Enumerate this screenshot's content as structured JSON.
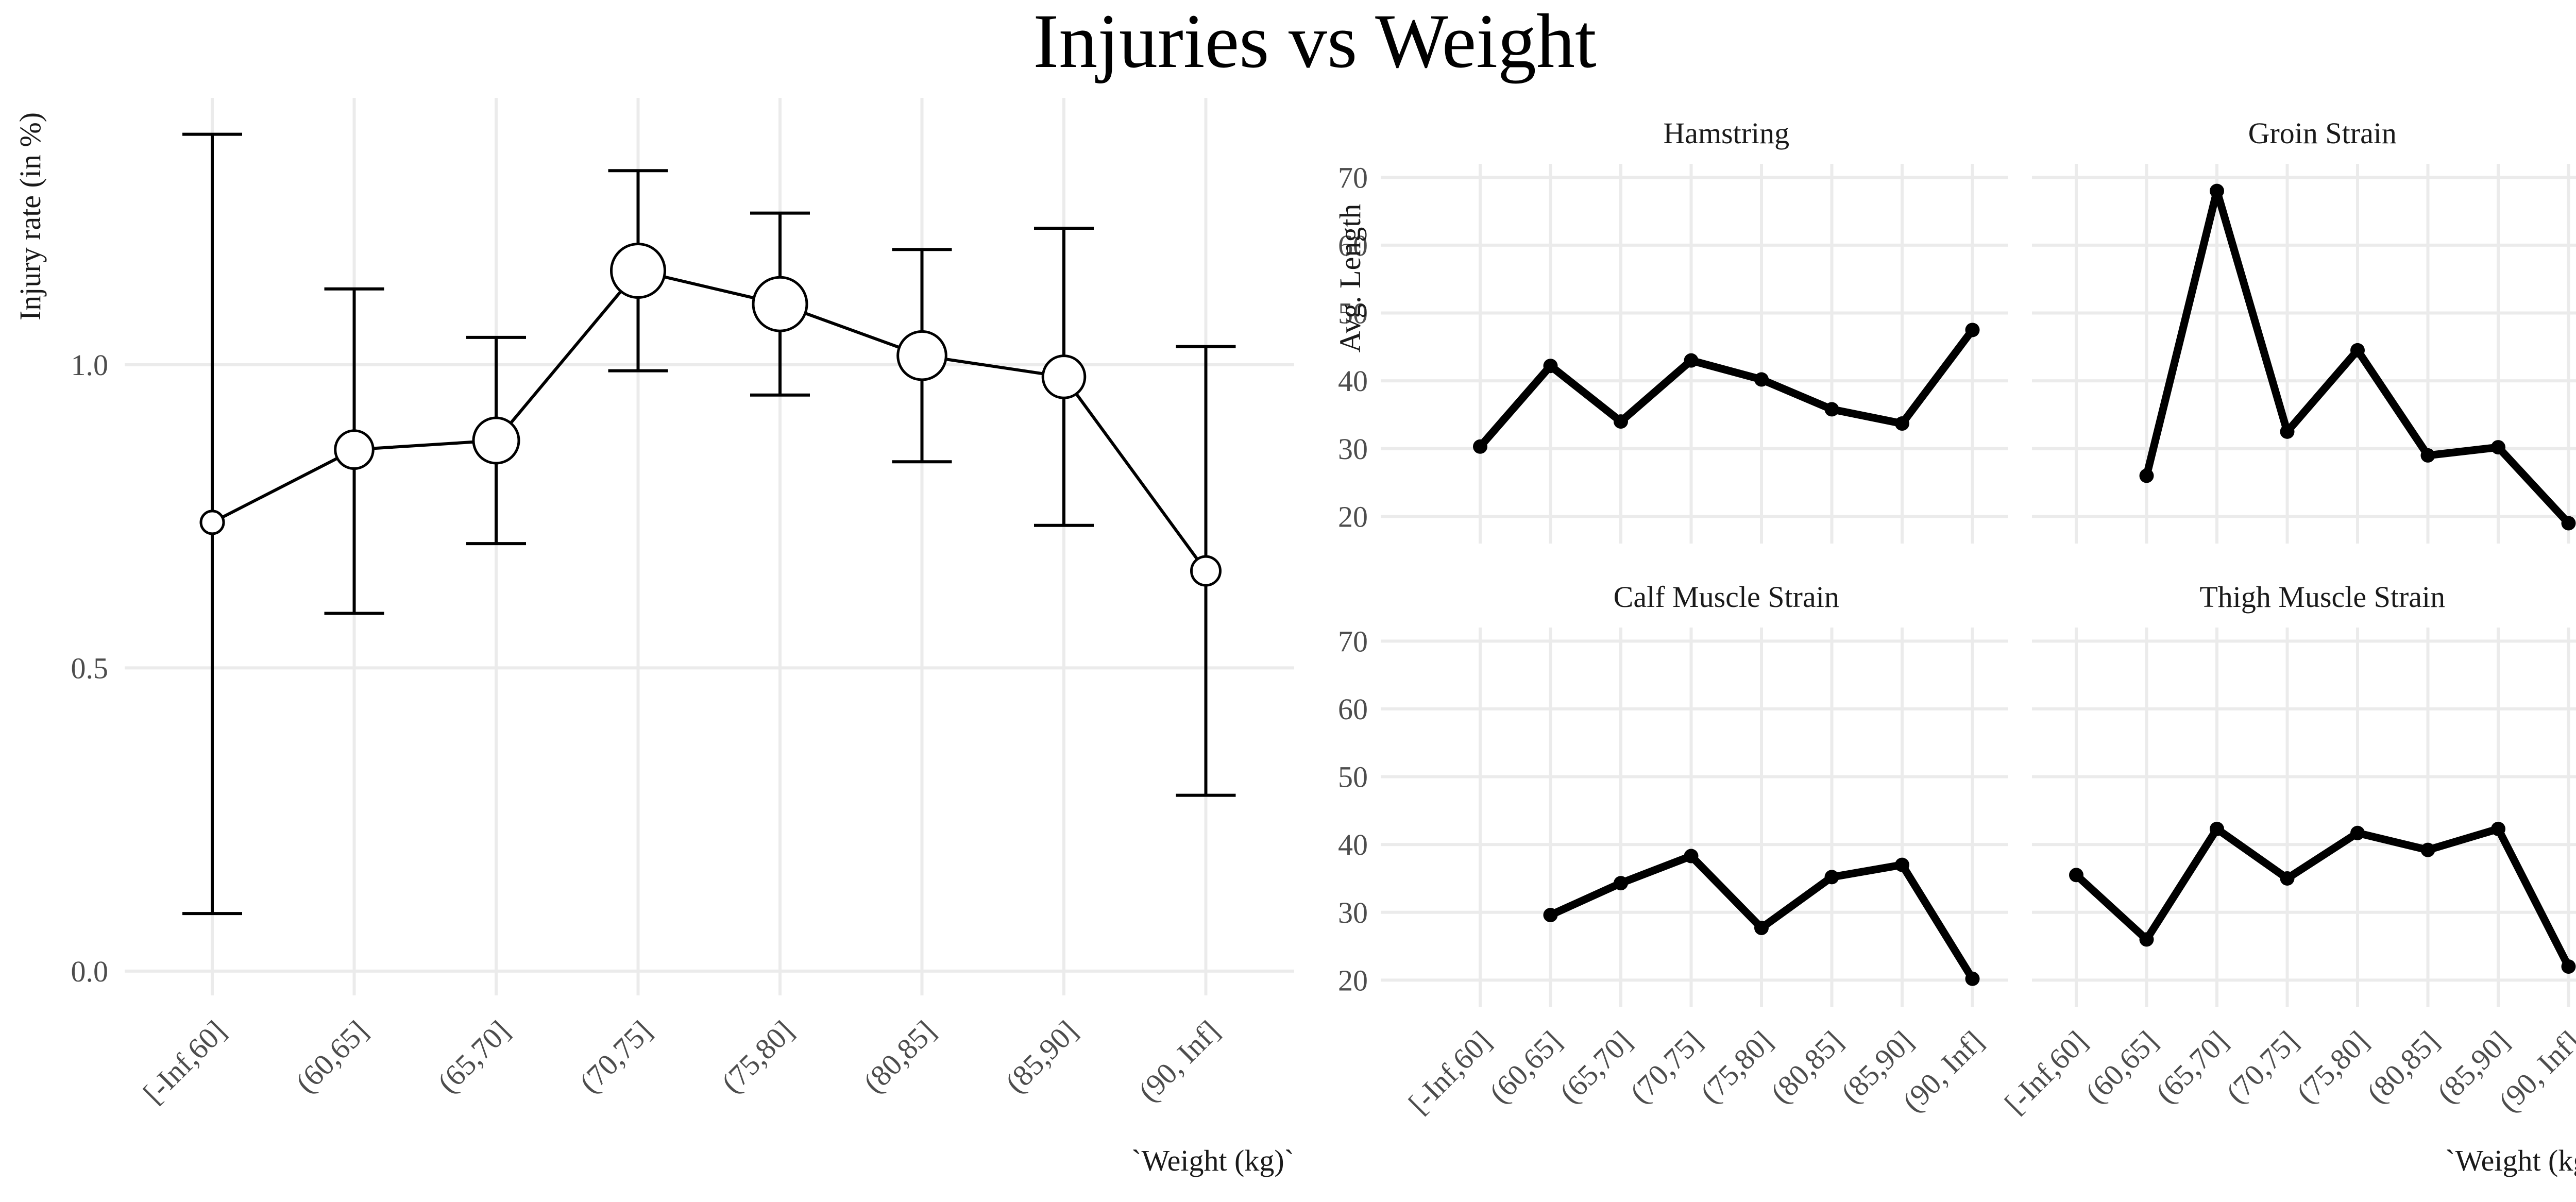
{
  "title": "Injuries vs Weight",
  "chart_data": [
    {
      "type": "line",
      "subtype": "point-range",
      "xlabel": "`Weight (kg)`",
      "ylabel": "Injury rate (in %)",
      "ylim": [
        -0.04,
        1.44
      ],
      "yticks": [
        0.0,
        0.5,
        1.0
      ],
      "ytick_labels": [
        "0.0",
        "0.5",
        "1.0"
      ],
      "grid": true,
      "categories": [
        "[-Inf,60]",
        "(60,65]",
        "(65,70]",
        "(70,75]",
        "(75,80]",
        "(80,85]",
        "(85,90]",
        "(90, Inf]"
      ],
      "values": [
        0.74,
        0.86,
        0.875,
        1.155,
        1.1,
        1.015,
        0.98,
        0.66
      ],
      "lower": [
        0.095,
        0.59,
        0.705,
        0.99,
        0.95,
        0.84,
        0.735,
        0.29
      ],
      "upper": [
        1.38,
        1.125,
        1.045,
        1.32,
        1.25,
        1.19,
        1.225,
        1.03
      ],
      "point_size_relative": [
        0.25,
        0.62,
        0.8,
        1.0,
        1.0,
        0.87,
        0.72,
        0.4
      ]
    },
    {
      "type": "line",
      "subtype": "facet-grid",
      "xlabel": "`Weight (kg)`",
      "ylabel": "Avg. Length",
      "ylim": [
        16,
        72
      ],
      "yticks": [
        20,
        30,
        40,
        50,
        60,
        70
      ],
      "grid": true,
      "categories": [
        "[-Inf,60]",
        "(60,65]",
        "(65,70]",
        "(70,75]",
        "(75,80]",
        "(80,85]",
        "(85,90]",
        "(90, Inf]"
      ],
      "panels": [
        {
          "name": "Hamstring",
          "values": [
            30.3,
            42.2,
            34.0,
            43.0,
            40.2,
            35.8,
            33.7,
            47.5
          ]
        },
        {
          "name": "Groin Strain",
          "values": [
            null,
            26.0,
            68.0,
            32.5,
            44.5,
            29.0,
            30.2,
            19.0
          ]
        },
        {
          "name": "Calf Muscle Strain",
          "values": [
            null,
            29.6,
            34.3,
            38.3,
            27.7,
            35.2,
            37.0,
            20.2
          ]
        },
        {
          "name": "Thigh Muscle Strain",
          "values": [
            35.5,
            26.0,
            42.3,
            35.0,
            41.7,
            39.2,
            42.3,
            22.0
          ]
        }
      ]
    }
  ]
}
